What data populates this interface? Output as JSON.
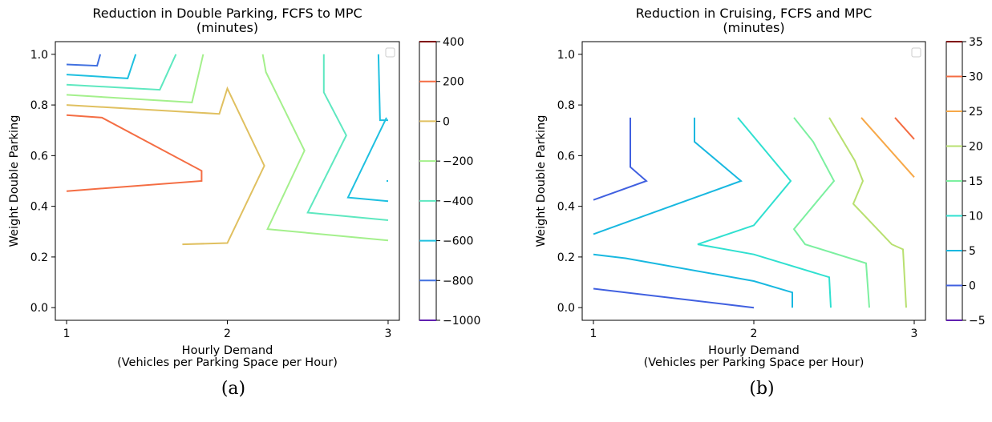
{
  "chart_data": [
    {
      "type": "contour",
      "title": [
        "Reduction in Double Parking, FCFS to MPC",
        "(minutes)"
      ],
      "xlabel": [
        "Hourly Demand",
        "(Vehicles per Parking Space per Hour)"
      ],
      "ylabel": "Weight Double Parking",
      "xlim": [
        0.93,
        3.07
      ],
      "ylim": [
        -0.05,
        1.05
      ],
      "xticks": [
        1,
        2,
        3
      ],
      "yticks": [
        0.0,
        0.2,
        0.4,
        0.6,
        0.8,
        1.0
      ],
      "caption": "(a)",
      "colorbar": {
        "min": -1000,
        "max": 400,
        "ticks": [
          400,
          200,
          0,
          -200,
          -400,
          -600,
          -800,
          -1000
        ],
        "tick_labels": [
          "400",
          "200",
          "0",
          "−200",
          "−400",
          "−600",
          "−800",
          "−1000"
        ],
        "colors": [
          "#800000",
          "#f46d43",
          "#e0c060",
          "#a4f08c",
          "#5ee8c0",
          "#1ec0e0",
          "#4070e0",
          "#6020b0"
        ]
      },
      "legend": {
        "placement": "upper right",
        "entries": []
      },
      "series": [
        {
          "level": 200,
          "color": "#f46d43",
          "points": [
            [
              1,
              0.76
            ],
            [
              1.22,
              0.75
            ],
            [
              1.84,
              0.54
            ],
            [
              1.84,
              0.5
            ],
            [
              1,
              0.46
            ]
          ]
        },
        {
          "level": 0,
          "color": "#e0c060",
          "points": [
            [
              1,
              0.8
            ],
            [
              1.95,
              0.765
            ],
            [
              2,
              0.865
            ],
            [
              2.23,
              0.56
            ],
            [
              2,
              0.255
            ],
            [
              1.72,
              0.25
            ]
          ]
        },
        {
          "level": -200,
          "color": "#a4f08c",
          "points": [
            [
              1,
              0.84
            ],
            [
              1.78,
              0.81
            ],
            [
              1.85,
              1.0
            ]
          ]
        },
        {
          "level": -200,
          "color": "#a4f08c",
          "points": [
            [
              2.22,
              1.0
            ],
            [
              2.24,
              0.93
            ],
            [
              2.48,
              0.62
            ],
            [
              2.25,
              0.31
            ],
            [
              3,
              0.265
            ]
          ]
        },
        {
          "level": -400,
          "color": "#5ee8c0",
          "points": [
            [
              1,
              0.88
            ],
            [
              1.58,
              0.86
            ],
            [
              1.68,
              1.0
            ]
          ]
        },
        {
          "level": -400,
          "color": "#5ee8c0",
          "points": [
            [
              2.6,
              1.0
            ],
            [
              2.6,
              0.85
            ],
            [
              2.74,
              0.68
            ],
            [
              2.5,
              0.375
            ],
            [
              3,
              0.345
            ]
          ]
        },
        {
          "level": -600,
          "color": "#1ec0e0",
          "points": [
            [
              1,
              0.92
            ],
            [
              1.38,
              0.905
            ],
            [
              1.43,
              1.0
            ]
          ]
        },
        {
          "level": -600,
          "color": "#1ec0e0",
          "points": [
            [
              2.94,
              1.0
            ],
            [
              2.95,
              0.74
            ],
            [
              3,
              0.74
            ]
          ]
        },
        {
          "level": -600,
          "color": "#1ec0e0",
          "points": [
            [
              2.99,
              0.75
            ],
            [
              2.75,
              0.435
            ],
            [
              3,
              0.42
            ]
          ]
        },
        {
          "level": -600,
          "color": "#1ec0e0",
          "points": [
            [
              2.99,
              0.5
            ],
            [
              3,
              0.5
            ]
          ]
        },
        {
          "level": -800,
          "color": "#4070e0",
          "points": [
            [
              1,
              0.96
            ],
            [
              1.19,
              0.955
            ],
            [
              1.21,
              1.0
            ]
          ]
        }
      ]
    },
    {
      "type": "contour",
      "title": [
        "Reduction in Cruising, FCFS and MPC",
        "(minutes)"
      ],
      "xlabel": [
        "Hourly Demand",
        "(Vehicles per Parking Space per Hour)"
      ],
      "ylabel": "Weight Double Parking",
      "xlim": [
        0.93,
        3.07
      ],
      "ylim": [
        -0.05,
        1.05
      ],
      "xticks": [
        1,
        2,
        3
      ],
      "yticks": [
        0.0,
        0.2,
        0.4,
        0.6,
        0.8,
        1.0
      ],
      "caption": "(b)",
      "colorbar": {
        "min": -5,
        "max": 35,
        "ticks": [
          35,
          30,
          25,
          20,
          15,
          10,
          5,
          0,
          -5
        ],
        "tick_labels": [
          "35",
          "30",
          "25",
          "20",
          "15",
          "10",
          "5",
          "0",
          "−5"
        ],
        "colors": [
          "#800000",
          "#f46d43",
          "#f7a848",
          "#b8e070",
          "#7cf0a0",
          "#30e0d0",
          "#18b8e0",
          "#4060e0",
          "#6020b0"
        ]
      },
      "legend": {
        "placement": "upper right",
        "entries": []
      },
      "series": [
        {
          "level": 0,
          "color": "#4060e0",
          "points": [
            [
              1.23,
              0.75
            ],
            [
              1.23,
              0.555
            ],
            [
              1.33,
              0.5
            ],
            [
              1,
              0.425
            ]
          ]
        },
        {
          "level": 0,
          "color": "#4060e0",
          "points": [
            [
              1,
              0.075
            ],
            [
              2,
              0.0
            ]
          ]
        },
        {
          "level": 5,
          "color": "#18b8e0",
          "points": [
            [
              1.63,
              0.75
            ],
            [
              1.63,
              0.655
            ],
            [
              1.92,
              0.5
            ],
            [
              1,
              0.29
            ]
          ]
        },
        {
          "level": 5,
          "color": "#18b8e0",
          "points": [
            [
              1,
              0.21
            ],
            [
              1.2,
              0.195
            ],
            [
              2,
              0.105
            ],
            [
              2.24,
              0.06
            ],
            [
              2.24,
              0.0
            ]
          ]
        },
        {
          "level": 10,
          "color": "#30e0d0",
          "points": [
            [
              1.9,
              0.75
            ],
            [
              2.23,
              0.5
            ],
            [
              2,
              0.325
            ],
            [
              1.65,
              0.25
            ],
            [
              2,
              0.21
            ],
            [
              2.47,
              0.12
            ],
            [
              2.48,
              0.0
            ]
          ]
        },
        {
          "level": 15,
          "color": "#7cf0a0",
          "points": [
            [
              2.25,
              0.75
            ],
            [
              2.37,
              0.655
            ],
            [
              2.5,
              0.5
            ],
            [
              2.25,
              0.31
            ],
            [
              2.32,
              0.25
            ],
            [
              2.7,
              0.175
            ],
            [
              2.72,
              0.0
            ]
          ]
        },
        {
          "level": 20,
          "color": "#b8e070",
          "points": [
            [
              2.47,
              0.75
            ],
            [
              2.63,
              0.58
            ],
            [
              2.68,
              0.5
            ],
            [
              2.62,
              0.41
            ],
            [
              2.86,
              0.25
            ],
            [
              2.93,
              0.23
            ],
            [
              2.95,
              0.0
            ]
          ]
        },
        {
          "level": 25,
          "color": "#f7a848",
          "points": [
            [
              2.67,
              0.75
            ],
            [
              3,
              0.515
            ]
          ]
        },
        {
          "level": 30,
          "color": "#f46d43",
          "points": [
            [
              2.88,
              0.75
            ],
            [
              3,
              0.665
            ]
          ]
        }
      ]
    }
  ]
}
